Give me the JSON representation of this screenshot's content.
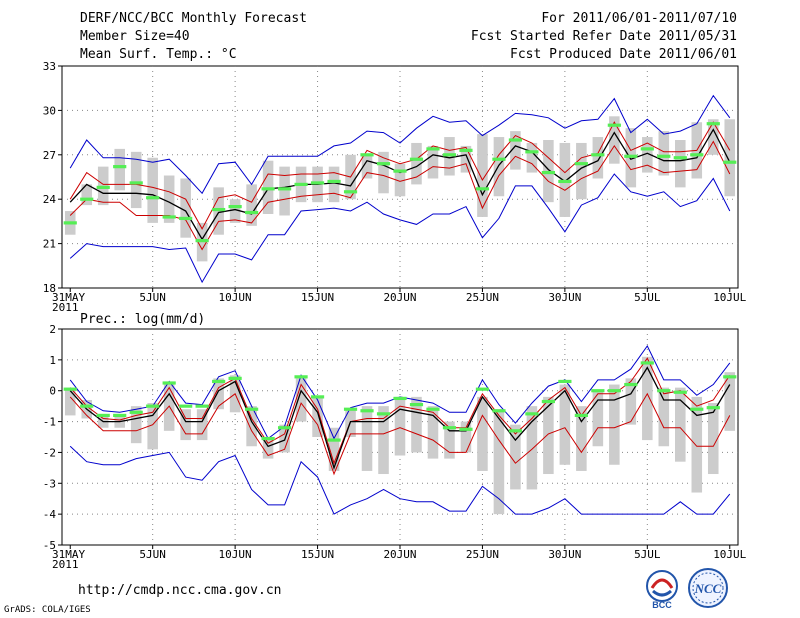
{
  "header": {
    "title": "DERF/NCC/BCC Monthly Forecast",
    "member_size": "Member Size=40",
    "variable": "Mean Surf. Temp.: °C",
    "period": "For 2011/06/01-2011/07/10",
    "started": "Fcst Started Refer Date 2011/05/31",
    "produced": "Fcst Produced Date 2011/06/01"
  },
  "footer": {
    "url": "http://cmdp.ncc.cma.gov.cn",
    "credit": "GrADS: COLA/IGES",
    "logo_left_text": "BCC",
    "logo_right_text": "NCC"
  },
  "colors": {
    "mean": "#000000",
    "spread": "#cc0000",
    "extreme": "#0000cc",
    "member_bar": "#cccccc",
    "observed_marker": "#55ee55"
  },
  "chart_data": [
    {
      "type": "line",
      "title": "Mean Surf. Temp.: °C",
      "xlabel": "",
      "ylabel": "",
      "x_ticks": [
        "31MAY\n2011",
        "5JUN",
        "10JUN",
        "15JUN",
        "20JUN",
        "25JUN",
        "30JUN",
        "5JUL",
        "10JUL"
      ],
      "ylim": [
        18,
        33
      ],
      "yticks": [
        18,
        21,
        24,
        27,
        30,
        33
      ],
      "days": 41,
      "series": [
        {
          "name": "max",
          "values": [
            26.1,
            28.0,
            26.8,
            26.8,
            26.7,
            26.5,
            26.7,
            25.6,
            24.4,
            26.4,
            26.5,
            25.0,
            26.9,
            26.9,
            26.9,
            26.9,
            27.6,
            27.8,
            28.6,
            28.5,
            27.8,
            28.8,
            29.6,
            29.2,
            29.3,
            28.3,
            29.0,
            29.8,
            29.7,
            29.5,
            28.8,
            29.3,
            29.4,
            30.8,
            28.5,
            29.4,
            28.4,
            28.6,
            29.1,
            31.0,
            29.5
          ]
        },
        {
          "name": "upper",
          "values": [
            24.0,
            25.8,
            25.0,
            25.0,
            25.0,
            24.8,
            24.5,
            24.0,
            22.0,
            24.1,
            24.3,
            23.8,
            25.7,
            25.6,
            25.7,
            25.7,
            25.8,
            25.5,
            27.3,
            26.8,
            26.4,
            26.7,
            27.6,
            27.3,
            27.5,
            25.3,
            27.0,
            28.3,
            27.8,
            26.8,
            25.8,
            26.8,
            27.1,
            29.2,
            27.3,
            27.8,
            27.2,
            27.2,
            27.3,
            29.2,
            27.3
          ]
        },
        {
          "name": "mean",
          "values": [
            23.8,
            25.0,
            24.4,
            24.4,
            24.4,
            24.3,
            23.8,
            23.2,
            21.3,
            23.1,
            23.3,
            23.0,
            24.7,
            24.8,
            25.0,
            25.0,
            25.1,
            24.9,
            26.6,
            26.3,
            25.8,
            26.2,
            27.0,
            26.8,
            27.0,
            24.3,
            26.3,
            27.6,
            27.2,
            26.0,
            25.2,
            26.1,
            26.6,
            28.5,
            26.7,
            27.1,
            26.6,
            26.6,
            26.8,
            28.7,
            26.5
          ]
        },
        {
          "name": "lower",
          "values": [
            22.9,
            24.0,
            23.8,
            23.8,
            22.9,
            22.9,
            22.9,
            22.6,
            20.6,
            22.5,
            22.6,
            22.4,
            23.8,
            24.0,
            24.2,
            24.3,
            24.4,
            24.1,
            25.8,
            25.6,
            25.2,
            25.5,
            26.2,
            26.1,
            26.4,
            23.4,
            25.6,
            26.9,
            26.4,
            25.2,
            24.6,
            25.4,
            25.9,
            27.6,
            26.0,
            26.3,
            25.8,
            25.9,
            26.0,
            27.9,
            25.7
          ]
        },
        {
          "name": "min",
          "values": [
            20.0,
            21.0,
            20.8,
            20.8,
            20.8,
            20.8,
            20.6,
            20.7,
            18.4,
            20.3,
            20.3,
            19.9,
            21.6,
            21.6,
            23.2,
            23.3,
            23.4,
            23.2,
            23.8,
            23.0,
            22.6,
            22.3,
            23.0,
            23.0,
            23.5,
            21.4,
            22.7,
            24.9,
            24.9,
            23.4,
            21.8,
            23.6,
            24.1,
            25.7,
            24.5,
            24.2,
            24.5,
            23.5,
            23.9,
            25.4,
            23.2
          ]
        },
        {
          "name": "observed",
          "values": [
            22.4,
            24.0,
            24.8,
            26.2,
            25.1,
            24.1,
            22.8,
            22.7,
            21.2,
            23.3,
            23.5,
            23.1,
            24.7,
            24.7,
            25.0,
            25.1,
            25.2,
            24.5,
            27.0,
            26.4,
            25.9,
            26.7,
            27.4,
            27.0,
            27.3,
            24.7,
            26.7,
            28.0,
            27.2,
            25.8,
            25.2,
            26.4,
            27.0,
            29.0,
            26.9,
            27.4,
            26.9,
            26.8,
            27.0,
            29.1,
            26.5
          ]
        },
        {
          "name": "members_bar_top",
          "values": [
            23.2,
            25.0,
            26.2,
            27.4,
            27.2,
            26.8,
            25.6,
            25.4,
            22.4,
            24.8,
            24.0,
            25.0,
            26.6,
            26.2,
            26.2,
            26.2,
            26.2,
            27.0,
            27.0,
            27.2,
            26.4,
            27.8,
            27.6,
            28.2,
            27.6,
            28.4,
            28.2,
            28.6,
            27.8,
            28.0,
            27.8,
            27.8,
            28.2,
            29.6,
            28.8,
            28.2,
            28.6,
            28.0,
            29.2,
            29.4,
            29.4
          ]
        },
        {
          "name": "members_bar_bottom",
          "values": [
            21.6,
            23.6,
            23.6,
            24.6,
            23.4,
            22.4,
            22.4,
            21.4,
            19.8,
            21.6,
            22.4,
            22.2,
            23.0,
            22.9,
            23.8,
            23.8,
            23.8,
            24.0,
            25.4,
            24.4,
            24.2,
            25.0,
            25.4,
            25.6,
            25.8,
            22.8,
            24.2,
            26.0,
            25.8,
            23.8,
            22.8,
            24.0,
            25.4,
            26.4,
            24.8,
            25.8,
            25.6,
            24.8,
            25.4,
            27.0,
            24.2
          ]
        }
      ]
    },
    {
      "type": "line",
      "title": "Prec.: log(mm/d)",
      "xlabel": "",
      "ylabel": "",
      "x_ticks": [
        "31MAY\n2011",
        "5JUN",
        "10JUN",
        "15JUN",
        "20JUN",
        "25JUN",
        "30JUN",
        "5JUL",
        "10JUL"
      ],
      "ylim": [
        -5,
        2
      ],
      "yticks": [
        -5,
        -4,
        -3,
        -2,
        -1,
        0,
        1,
        2
      ],
      "days": 41,
      "series": [
        {
          "name": "max",
          "values": [
            0.35,
            -0.35,
            -0.65,
            -0.7,
            -0.6,
            -0.5,
            0.3,
            -0.4,
            -0.45,
            0.45,
            0.65,
            -0.5,
            -1.55,
            -1.15,
            0.5,
            -0.3,
            -1.55,
            -0.55,
            -0.4,
            -0.4,
            -0.2,
            -0.3,
            -0.4,
            -0.7,
            -0.7,
            0.35,
            -0.45,
            -1.05,
            -0.4,
            0.15,
            0.35,
            -0.35,
            0.35,
            0.35,
            0.7,
            1.45,
            0.35,
            0.35,
            -0.15,
            0.2,
            0.9
          ]
        },
        {
          "name": "upper",
          "values": [
            0.1,
            -0.5,
            -0.9,
            -0.95,
            -0.8,
            -0.7,
            0.1,
            -0.9,
            -0.9,
            0.1,
            0.4,
            -0.9,
            -1.7,
            -1.4,
            0.2,
            -0.6,
            -2.35,
            -1.0,
            -0.9,
            -0.9,
            -0.5,
            -0.6,
            -0.7,
            -1.2,
            -1.2,
            -0.1,
            -0.8,
            -1.4,
            -0.9,
            -0.3,
            0.1,
            -0.8,
            -0.1,
            -0.1,
            0.3,
            1.05,
            -0.1,
            0.0,
            -0.5,
            -0.3,
            0.5
          ]
        },
        {
          "name": "mean",
          "values": [
            0.0,
            -0.6,
            -1.0,
            -1.0,
            -0.9,
            -0.8,
            -0.1,
            -1.0,
            -1.0,
            0.0,
            0.3,
            -1.0,
            -1.8,
            -1.6,
            0.0,
            -0.7,
            -2.5,
            -1.0,
            -1.0,
            -1.0,
            -0.6,
            -0.7,
            -0.8,
            -1.3,
            -1.3,
            -0.2,
            -0.9,
            -1.6,
            -1.0,
            -0.5,
            0.0,
            -1.0,
            -0.3,
            -0.3,
            -0.1,
            0.75,
            -0.3,
            -0.3,
            -0.8,
            -0.7,
            0.2
          ]
        },
        {
          "name": "lower",
          "values": [
            -0.2,
            -0.8,
            -1.3,
            -1.3,
            -1.3,
            -1.1,
            -0.5,
            -1.4,
            -1.4,
            -0.5,
            -0.1,
            -1.3,
            -2.1,
            -1.9,
            -0.4,
            -1.1,
            -2.7,
            -1.4,
            -1.4,
            -1.4,
            -1.2,
            -1.4,
            -1.6,
            -2.0,
            -2.0,
            -0.8,
            -1.6,
            -2.35,
            -1.9,
            -1.4,
            -1.2,
            -2.0,
            -1.2,
            -1.2,
            -1.0,
            -0.1,
            -1.2,
            -1.2,
            -1.8,
            -1.8,
            -0.8
          ]
        },
        {
          "name": "min",
          "values": [
            -1.8,
            -2.3,
            -2.4,
            -2.4,
            -2.2,
            -2.1,
            -2.0,
            -2.8,
            -2.9,
            -2.3,
            -2.1,
            -3.2,
            -3.7,
            -3.7,
            -2.3,
            -2.8,
            -4.0,
            -3.7,
            -3.5,
            -3.2,
            -3.5,
            -3.6,
            -3.6,
            -3.9,
            -3.9,
            -3.1,
            -3.5,
            -4.0,
            -4.0,
            -3.8,
            -3.5,
            -4.0,
            -4.0,
            -4.0,
            -4.0,
            -4.0,
            -4.0,
            -3.6,
            -4.0,
            -4.0,
            -3.35
          ]
        },
        {
          "name": "observed",
          "values": [
            0.05,
            -0.5,
            -0.8,
            -0.8,
            -0.7,
            -0.5,
            0.25,
            -0.5,
            -0.5,
            0.3,
            0.4,
            -0.6,
            -1.55,
            -1.2,
            0.45,
            -0.2,
            -1.6,
            -0.6,
            -0.65,
            -0.75,
            -0.25,
            -0.45,
            -0.6,
            -1.2,
            -1.25,
            0.05,
            -0.65,
            -1.3,
            -0.75,
            -0.35,
            0.3,
            -0.8,
            0.0,
            0.0,
            0.2,
            0.9,
            0.0,
            -0.05,
            -0.6,
            -0.55,
            0.45
          ]
        },
        {
          "name": "members_bar_top",
          "values": [
            0.1,
            -0.3,
            -0.8,
            -0.8,
            -0.5,
            -0.4,
            0.3,
            -0.6,
            -0.6,
            0.4,
            0.5,
            -0.5,
            -1.5,
            -1.1,
            0.4,
            -0.2,
            -1.2,
            -0.6,
            -0.5,
            -0.5,
            -0.2,
            -0.2,
            -0.5,
            -1.0,
            -1.0,
            -0.2,
            -0.6,
            -1.1,
            -0.5,
            -0.2,
            0.2,
            -0.5,
            0.0,
            0.2,
            0.4,
            1.1,
            0.1,
            0.1,
            -0.2,
            -0.4,
            0.6
          ]
        },
        {
          "name": "members_bar_bottom",
          "values": [
            -0.8,
            -0.9,
            -1.2,
            -1.2,
            -1.7,
            -1.9,
            -1.3,
            -1.6,
            -1.6,
            -0.6,
            -0.7,
            -1.8,
            -2.2,
            -2.0,
            -1.0,
            -1.5,
            -2.6,
            -1.5,
            -2.6,
            -2.7,
            -2.1,
            -2.0,
            -2.2,
            -2.2,
            -2.0,
            -2.6,
            -4.0,
            -3.2,
            -3.2,
            -2.7,
            -2.4,
            -2.6,
            -1.8,
            -2.4,
            -1.1,
            -1.6,
            -1.8,
            -2.3,
            -3.3,
            -2.7,
            -1.3
          ]
        }
      ]
    }
  ]
}
